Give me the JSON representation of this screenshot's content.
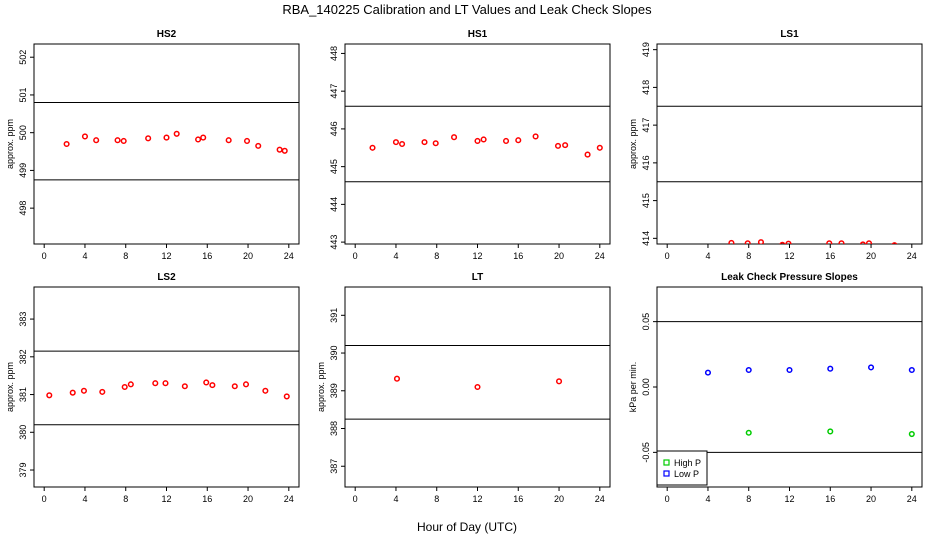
{
  "figure": {
    "title": "RBA_140225  Calibration and LT Values and Leak Check Slopes",
    "xlabel": "Hour of Day (UTC)"
  },
  "chart_data": [
    {
      "type": "scatter",
      "title": "HS2",
      "ylabel": "approx. ppm",
      "xlim": [
        -1,
        25
      ],
      "ylim": [
        497.05,
        502.35
      ],
      "xticks": [
        0,
        4,
        8,
        12,
        16,
        20,
        24
      ],
      "yticks": [
        498,
        499,
        500,
        501,
        502
      ],
      "hlines": [
        498.75,
        500.8
      ],
      "series": [
        {
          "color": "#ff0000",
          "marker": "circle",
          "x": [
            2.2,
            4.0,
            5.1,
            7.2,
            7.8,
            10.2,
            12.0,
            13.0,
            15.1,
            15.6,
            18.1,
            19.9,
            21.0,
            23.1,
            23.6
          ],
          "y": [
            499.7,
            499.9,
            499.8,
            499.8,
            499.78,
            499.85,
            499.87,
            499.97,
            499.82,
            499.87,
            499.8,
            499.78,
            499.65,
            499.55,
            499.52
          ]
        }
      ]
    },
    {
      "type": "scatter",
      "title": "HS1",
      "ylabel": "",
      "xlim": [
        -1,
        25
      ],
      "ylim": [
        442.95,
        448.25
      ],
      "xticks": [
        0,
        4,
        8,
        12,
        16,
        20,
        24
      ],
      "yticks": [
        443,
        444,
        445,
        446,
        447,
        448
      ],
      "hlines": [
        444.6,
        446.6
      ],
      "series": [
        {
          "color": "#ff0000",
          "marker": "circle",
          "x": [
            1.7,
            4.0,
            4.6,
            6.8,
            7.9,
            9.7,
            12.0,
            12.6,
            14.8,
            16.0,
            17.7,
            19.9,
            20.6,
            22.8,
            24.0
          ],
          "y": [
            445.5,
            445.65,
            445.6,
            445.65,
            445.62,
            445.78,
            445.68,
            445.72,
            445.68,
            445.7,
            445.8,
            445.55,
            445.57,
            445.32,
            445.5
          ]
        }
      ]
    },
    {
      "type": "scatter",
      "title": "LS1",
      "ylabel": "approx. ppm",
      "xlim": [
        -1,
        25
      ],
      "ylim": [
        413.85,
        419.15
      ],
      "xticks": [
        0,
        4,
        8,
        12,
        16,
        20,
        24
      ],
      "yticks": [
        414,
        415,
        416,
        417,
        418,
        419
      ],
      "hlines": [
        415.5,
        417.5
      ],
      "series": [
        {
          "color": "#ff0000",
          "marker": "circle",
          "x": [
            6.3,
            7.9,
            9.2,
            11.3,
            11.9,
            15.9,
            17.1,
            19.2,
            19.8,
            22.3
          ],
          "y": [
            413.88,
            413.87,
            413.9,
            413.83,
            413.86,
            413.87,
            413.87,
            413.84,
            413.87,
            413.82
          ]
        }
      ]
    },
    {
      "type": "scatter",
      "title": "LS2",
      "ylabel": "approx. ppm",
      "xlim": [
        -1,
        25
      ],
      "ylim": [
        378.55,
        383.85
      ],
      "xticks": [
        0,
        4,
        8,
        12,
        16,
        20,
        24
      ],
      "yticks": [
        379,
        380,
        381,
        382,
        383
      ],
      "hlines": [
        380.2,
        382.15
      ],
      "series": [
        {
          "color": "#ff0000",
          "marker": "circle",
          "x": [
            0.5,
            2.8,
            3.9,
            5.7,
            7.9,
            8.5,
            10.9,
            11.9,
            13.8,
            15.9,
            16.5,
            18.7,
            19.8,
            21.7,
            23.8
          ],
          "y": [
            380.98,
            381.05,
            381.1,
            381.07,
            381.2,
            381.27,
            381.3,
            381.3,
            381.22,
            381.32,
            381.25,
            381.22,
            381.27,
            381.1,
            380.95
          ]
        }
      ]
    },
    {
      "type": "scatter",
      "title": "LT",
      "ylabel": "approx. ppm",
      "xlim": [
        -1,
        25
      ],
      "ylim": [
        386.45,
        391.75
      ],
      "xticks": [
        0,
        4,
        8,
        12,
        16,
        20,
        24
      ],
      "yticks": [
        387,
        388,
        389,
        390,
        391
      ],
      "hlines": [
        388.25,
        390.2
      ],
      "series": [
        {
          "color": "#ff0000",
          "marker": "circle",
          "x": [
            4.1,
            12.0,
            20.0
          ],
          "y": [
            389.32,
            389.1,
            389.25
          ]
        }
      ]
    },
    {
      "type": "scatter",
      "title": "Leak Check Pressure Slopes",
      "ylabel": "kPa per min.",
      "xlim": [
        -1,
        25
      ],
      "ylim": [
        -0.0765,
        0.0765
      ],
      "xticks": [
        0,
        4,
        8,
        12,
        16,
        20,
        24
      ],
      "yticks": [
        -0.05,
        0.0,
        0.05
      ],
      "ytick_labels": [
        "-0.05",
        "0.00",
        "0.05"
      ],
      "hlines": [
        -0.05,
        0.05
      ],
      "legend": {
        "placement": "bottom-left"
      },
      "series": [
        {
          "name": "High P",
          "color": "#00cc00",
          "marker": "circle",
          "x": [
            8.0,
            16.0,
            24.0
          ],
          "y": [
            -0.035,
            -0.034,
            -0.036
          ]
        },
        {
          "name": "Low P",
          "color": "#0000ff",
          "marker": "circle",
          "x": [
            4.0,
            8.0,
            12.0,
            16.0,
            20.0,
            24.0
          ],
          "y": [
            0.011,
            0.013,
            0.013,
            0.014,
            0.015,
            0.013
          ]
        }
      ]
    }
  ]
}
